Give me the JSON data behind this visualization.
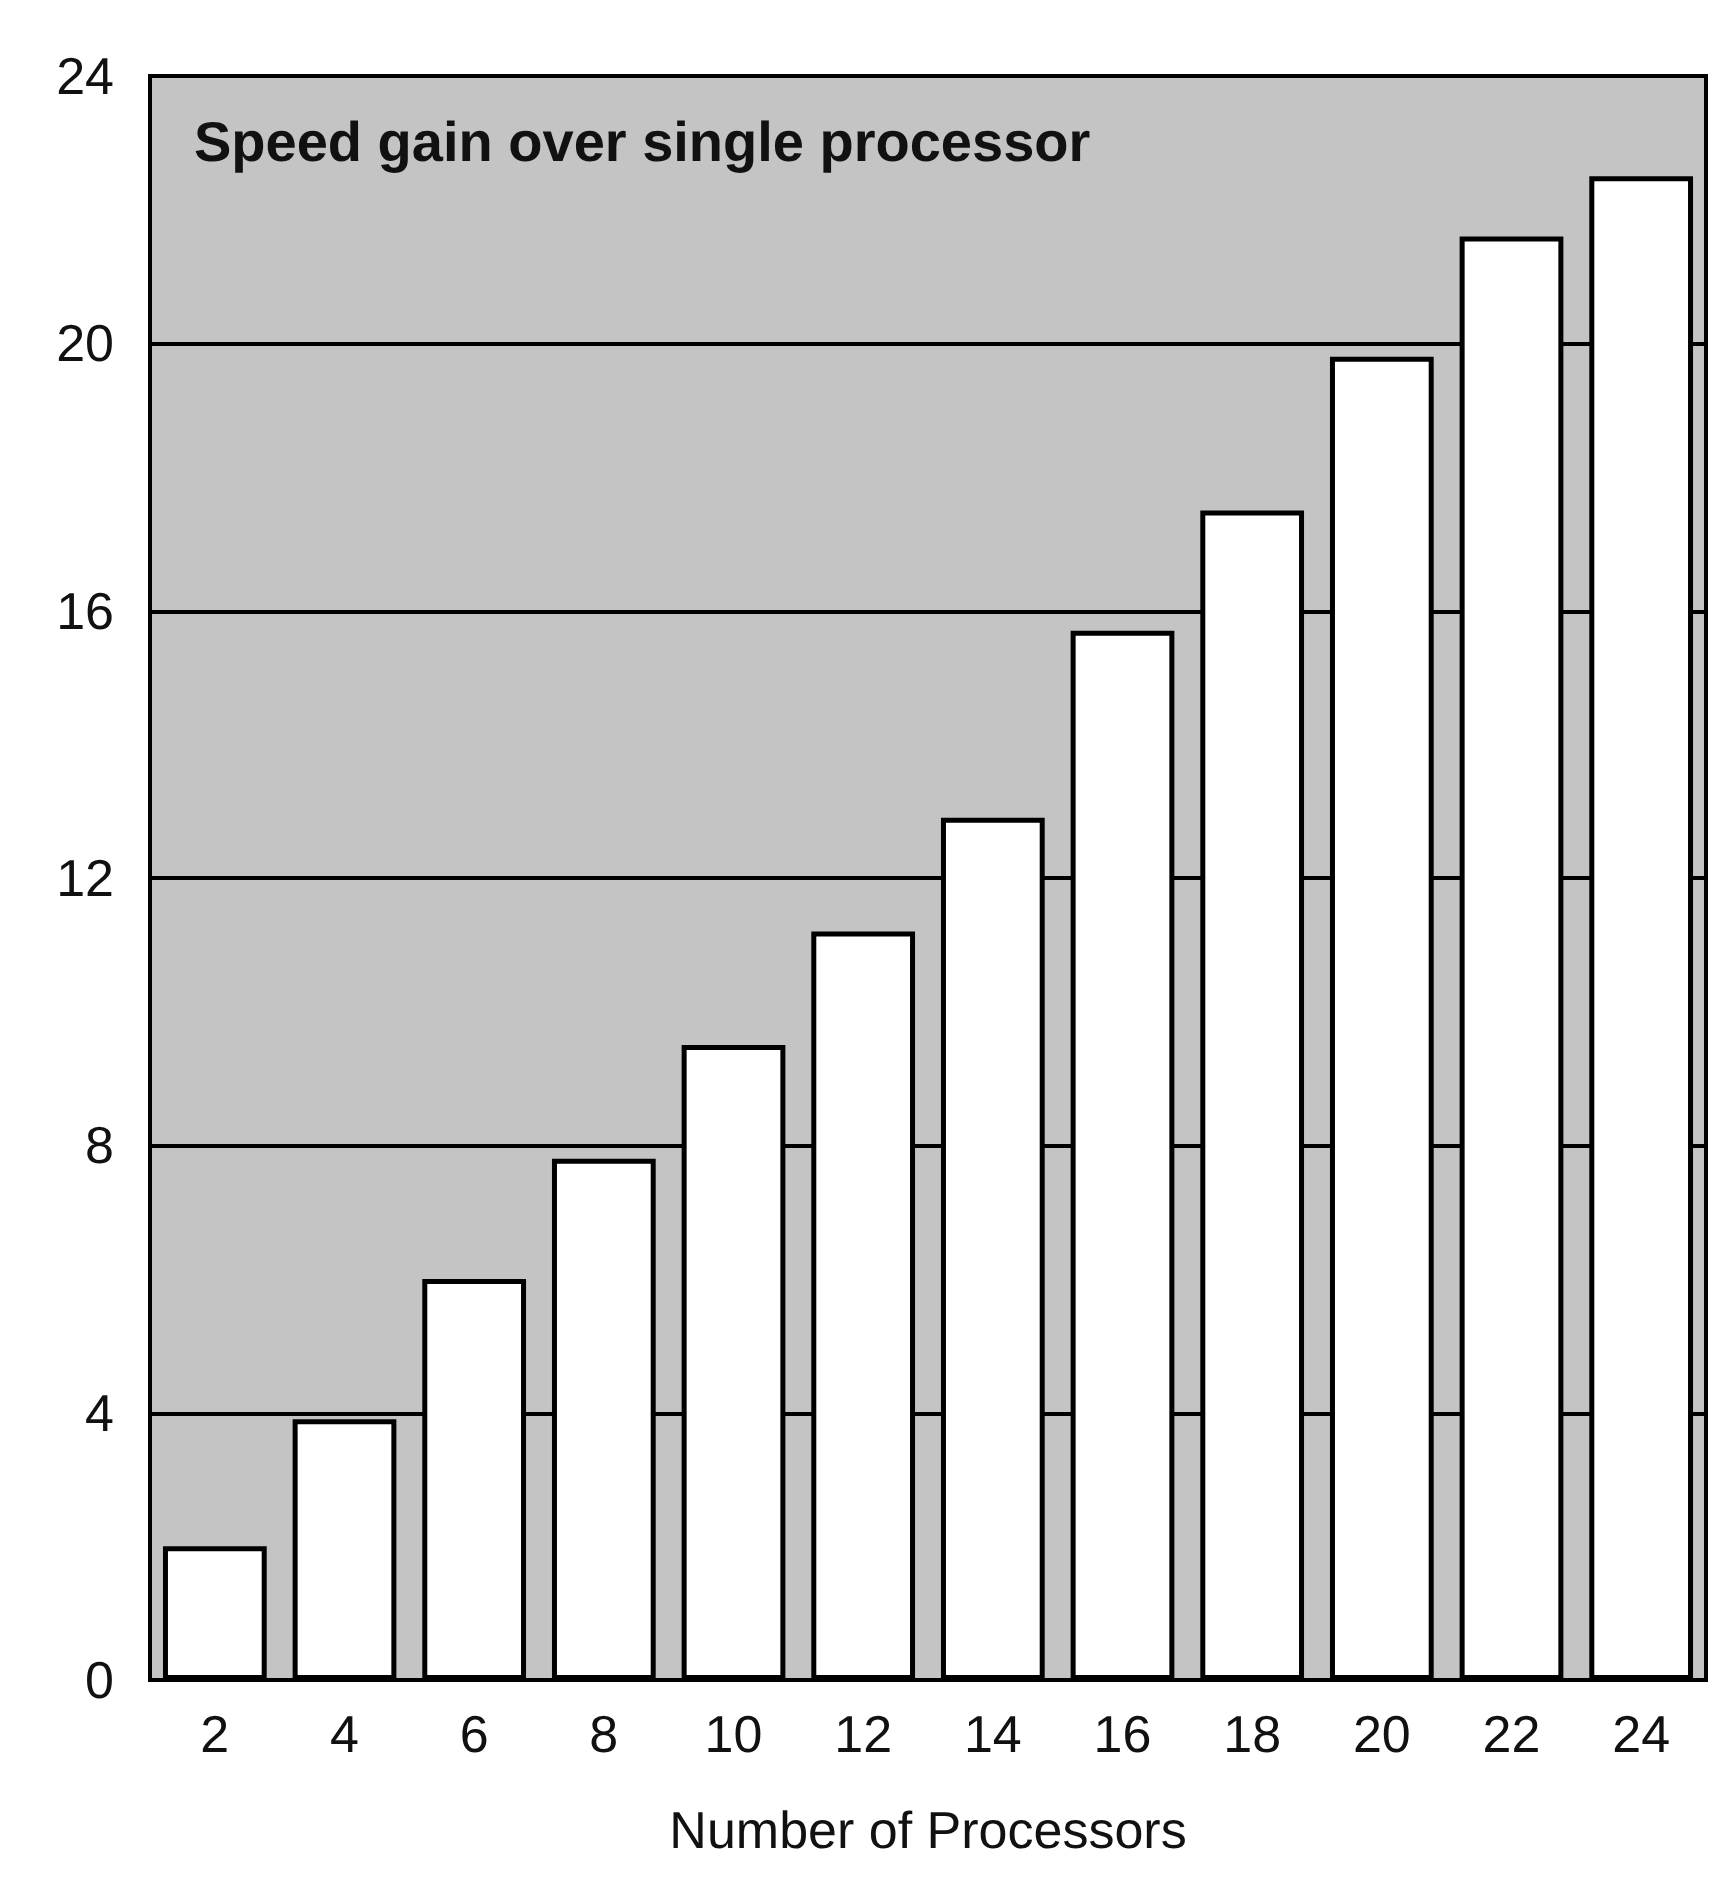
{
  "chart_data": {
    "type": "bar",
    "title": "Speed gain over single processor",
    "xlabel": "Number of Processors",
    "categories": [
      "2",
      "4",
      "6",
      "8",
      "10",
      "12",
      "14",
      "16",
      "18",
      "20",
      "22",
      "24"
    ],
    "values": [
      2.0,
      3.9,
      6.0,
      7.8,
      9.5,
      11.2,
      12.9,
      15.7,
      17.5,
      19.8,
      21.6,
      22.5
    ],
    "color": "#ffffff",
    "ylim": [
      0,
      24
    ],
    "yticks": [
      0,
      4,
      8,
      12,
      16,
      20,
      24
    ],
    "grid": "y"
  }
}
